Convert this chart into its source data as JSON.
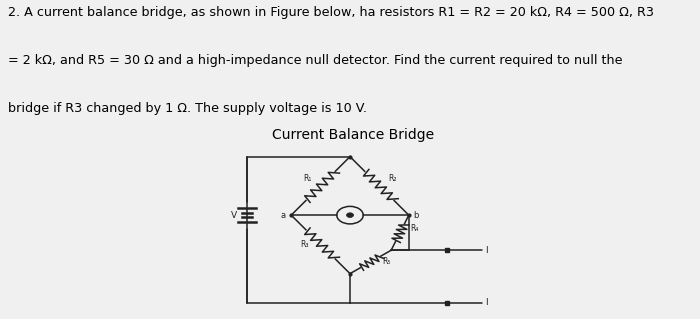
{
  "title": "Current Balance Bridge",
  "text_line1": "2. A current balance bridge, as shown in Figure below, ha resistors R1 = R2 = 20 kΩ, R4 = 500 Ω, R3",
  "text_line2": "= 2 kΩ, and R5 = 30 Ω and a high-impedance null detector. Find the current required to null the",
  "text_line3": "bridge if R3 changed by 1 Ω. The supply voltage is 10 V.",
  "bg_color": "#f0f0f0",
  "diagram_bg": "#f5f5f5",
  "text_color": "#000000",
  "diagram_title_fontsize": 10,
  "body_fontsize": 9.2,
  "line_color": "#222222"
}
